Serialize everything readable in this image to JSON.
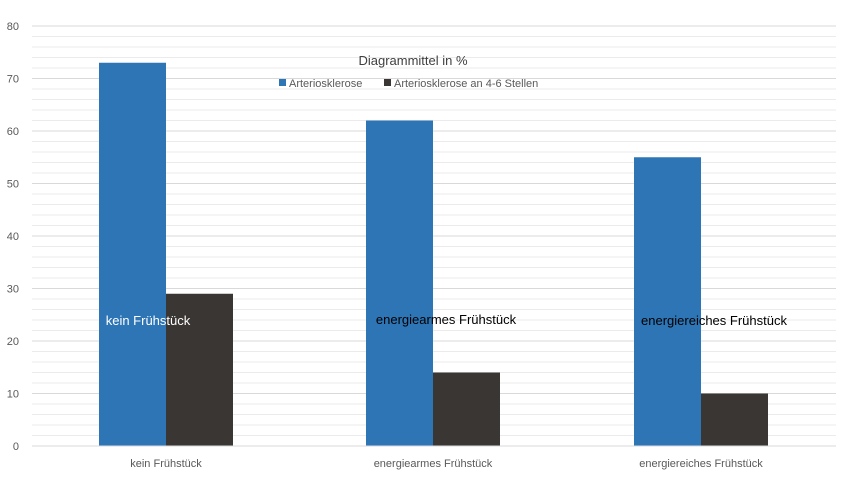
{
  "chart_data": {
    "type": "bar",
    "title": "Diagrammittel  in %",
    "categories": [
      "kein Frühstück",
      "energiearmes Frühstück",
      "energiereiches Frühstück"
    ],
    "series": [
      {
        "name": "Arteriosklerose",
        "color": "#2E75B6",
        "values": [
          73,
          62,
          55
        ]
      },
      {
        "name": "Arteriosklerose an 4-6 Stellen",
        "color": "#3A3634",
        "values": [
          29,
          14,
          10
        ]
      }
    ],
    "ylim": [
      0,
      80
    ],
    "yticks": [
      0,
      10,
      20,
      30,
      40,
      50,
      60,
      70,
      80
    ],
    "grid": true,
    "minor_grid": true,
    "legend_position": "top-center",
    "annotations": [
      "kein Frühstück",
      "energiearmes Frühstück",
      "energiereiches Frühstück"
    ],
    "colors": {
      "grid_major": "#D9D9D9",
      "grid_minor": "#EBEBEB",
      "axis_text": "#595959",
      "title_text": "#404040",
      "annotation_text": "#000000"
    }
  }
}
